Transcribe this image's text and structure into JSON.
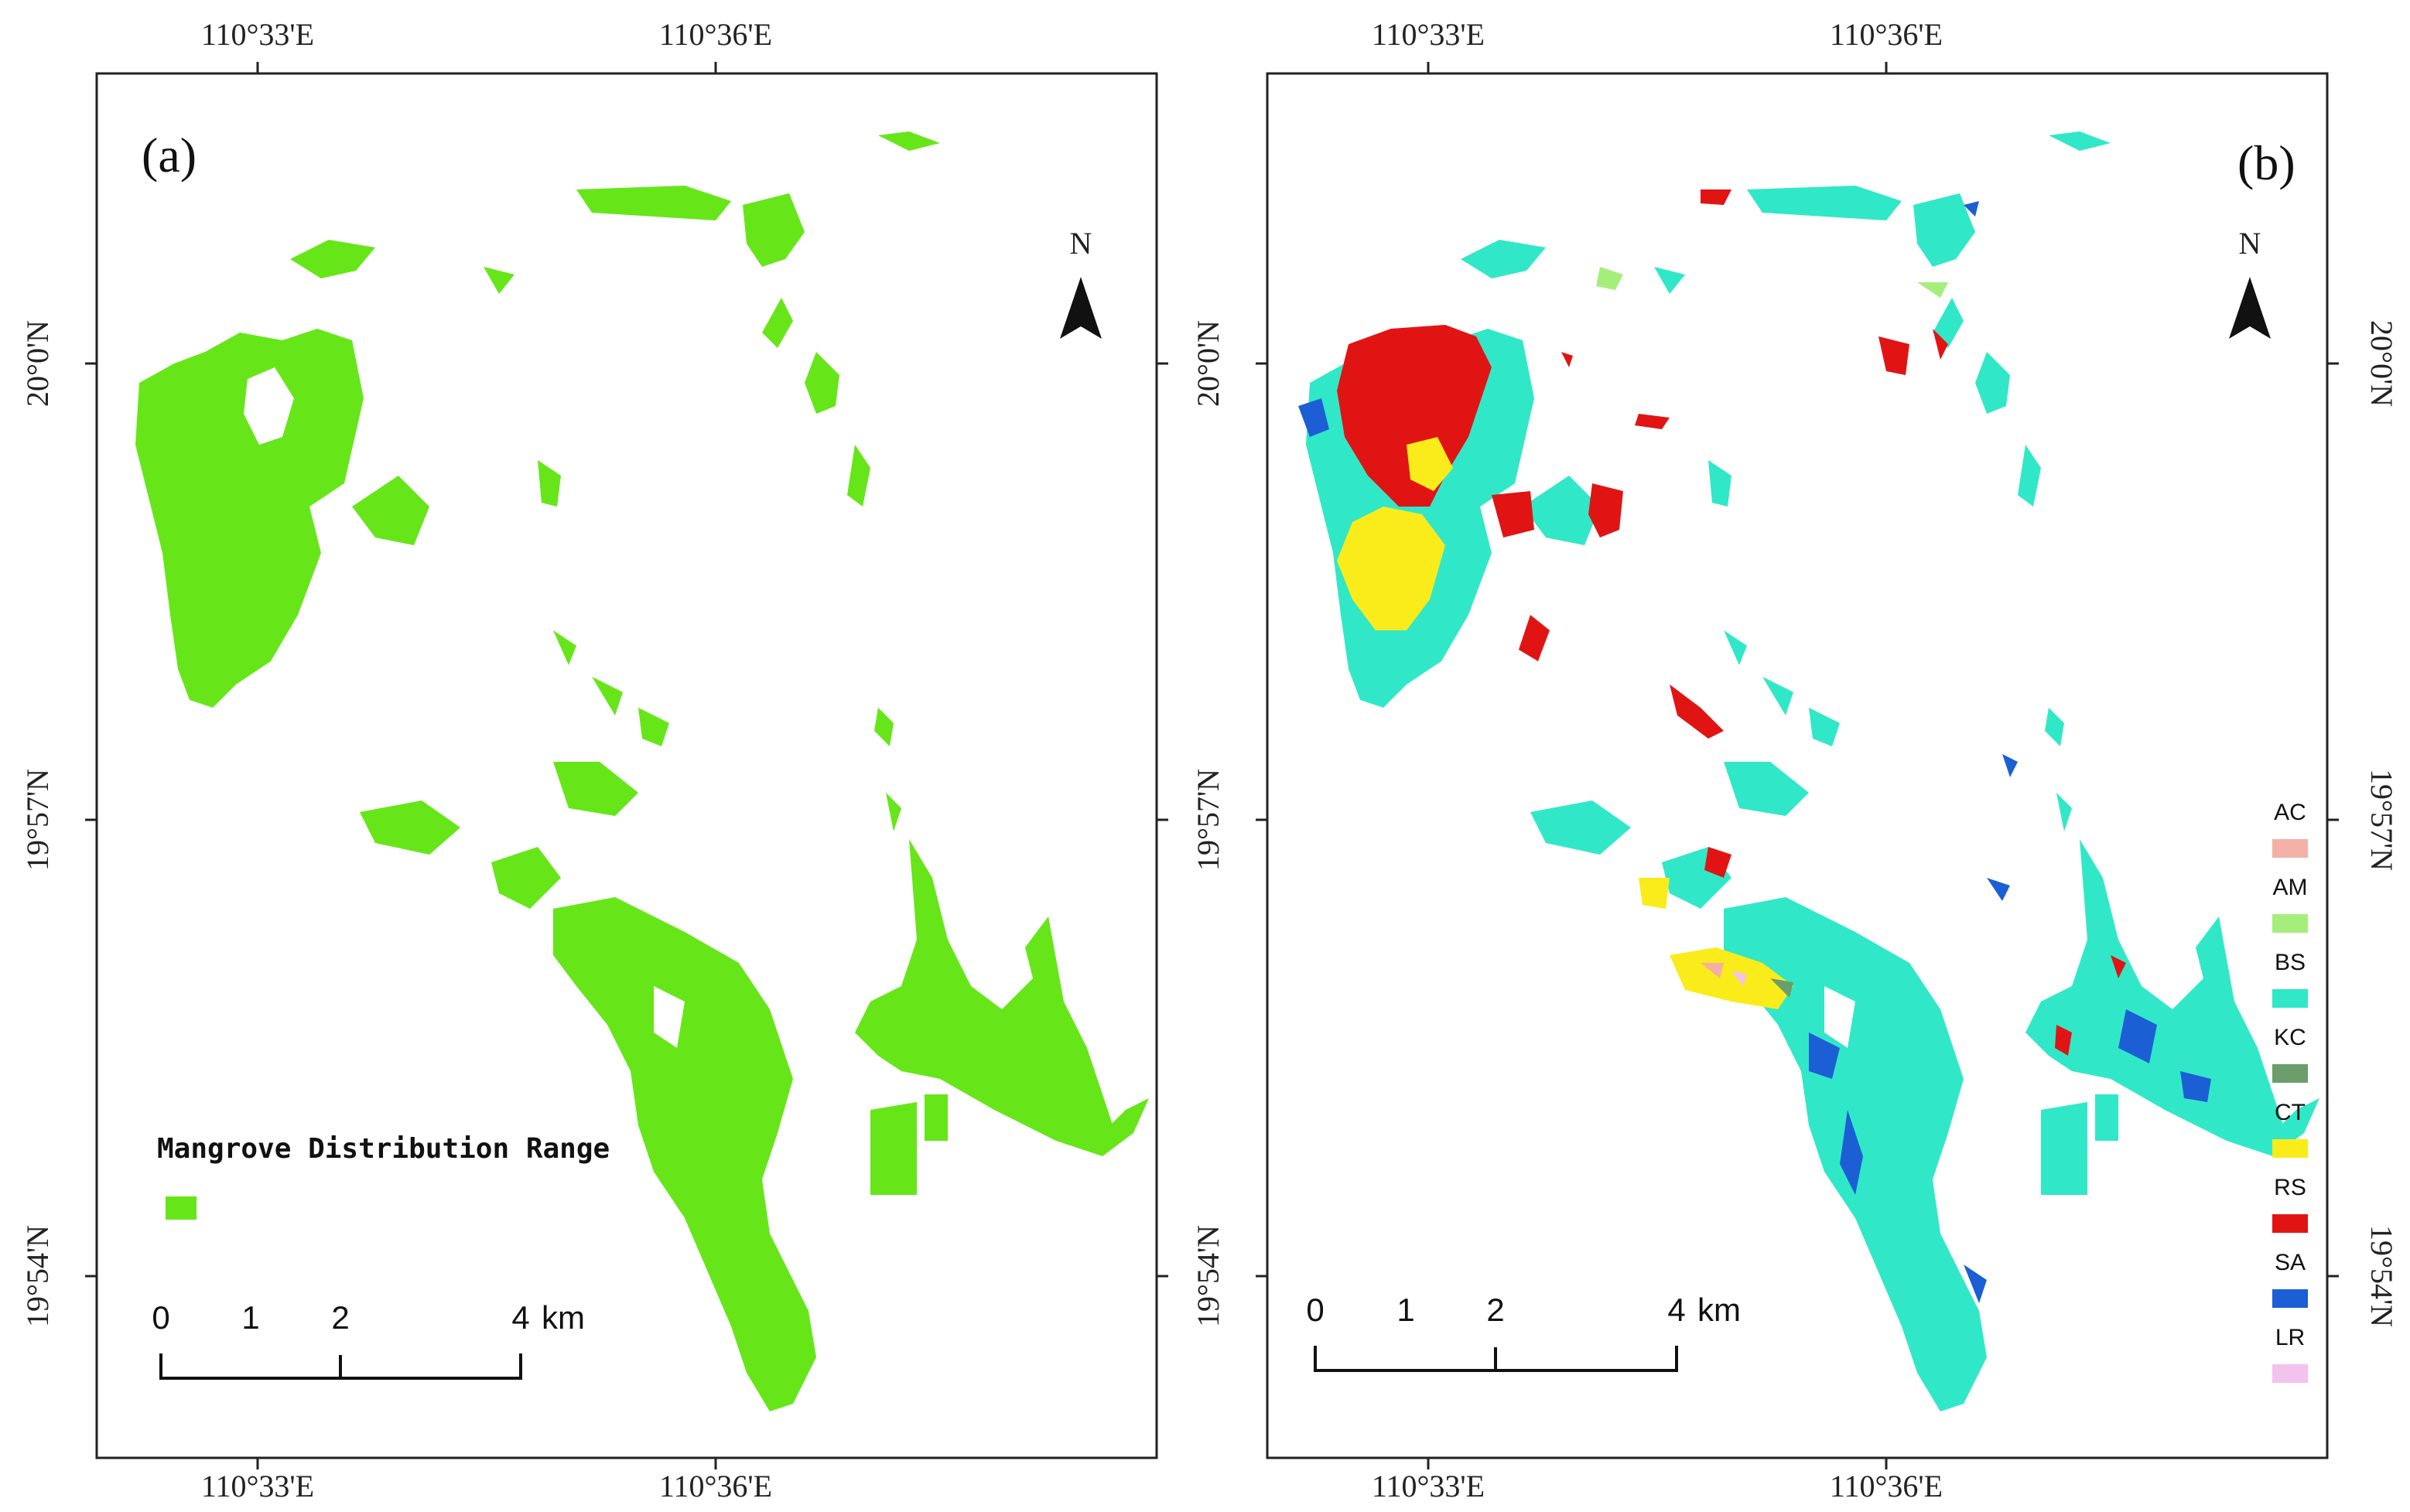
{
  "panel_a": {
    "label": "(a)",
    "legend_title": "Mangrove Distribution Range",
    "legend_color": "#66e619",
    "north": "N"
  },
  "panel_b": {
    "label": "(b)",
    "north": "N",
    "legend": [
      {
        "code": "AC",
        "color": "#f4b0a6"
      },
      {
        "code": "AM",
        "color": "#a6ee7c"
      },
      {
        "code": "BS",
        "color": "#30e8c8"
      },
      {
        "code": "KC",
        "color": "#6b9e6b"
      },
      {
        "code": "CT",
        "color": "#f9ec1a"
      },
      {
        "code": "RS",
        "color": "#e11414"
      },
      {
        "code": "SA",
        "color": "#1c5fd4"
      },
      {
        "code": "LR",
        "color": "#f3c2ef"
      }
    ]
  },
  "axes": {
    "lon_labels": [
      "110°33'E",
      "110°36'E"
    ],
    "lat_labels": [
      "20°0'N",
      "19°57'N",
      "19°54'N"
    ]
  },
  "scale_bar": {
    "ticks": [
      "0",
      "1",
      "2",
      "4"
    ],
    "unit": "km"
  },
  "colors": {
    "mangrove": "#66e619",
    "frame": "#222222"
  }
}
